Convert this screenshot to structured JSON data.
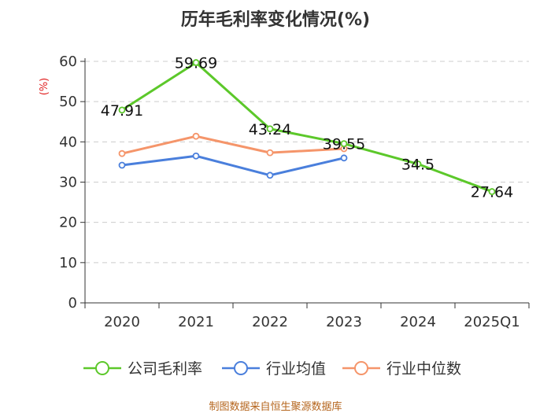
{
  "chart_data": {
    "type": "line",
    "title": "历年毛利率变化情况(%)",
    "ylabel": "(%)",
    "xlabel": "",
    "categories": [
      "2020",
      "2021",
      "2022",
      "2023",
      "2024",
      "2025Q1"
    ],
    "ylim": [
      0,
      60
    ],
    "yticks": [
      0,
      10,
      20,
      30,
      40,
      50,
      60
    ],
    "grid": true,
    "legend_position": "bottom",
    "series": [
      {
        "name": "公司毛利率",
        "color": "#5cc82a",
        "values": [
          47.91,
          59.69,
          43.24,
          39.55,
          34.5,
          27.64
        ],
        "labels": [
          "47.91",
          "59.69",
          "43.24",
          "39.55",
          "34.5",
          "27.64"
        ]
      },
      {
        "name": "行业均值",
        "color": "#4a7fdc",
        "values": [
          34.2,
          36.5,
          31.7,
          36.0,
          null,
          null
        ]
      },
      {
        "name": "行业中位数",
        "color": "#f5956a",
        "values": [
          37.1,
          41.4,
          37.3,
          38.3,
          null,
          null
        ]
      }
    ]
  },
  "source": "制图数据来自恒生聚源数据库"
}
